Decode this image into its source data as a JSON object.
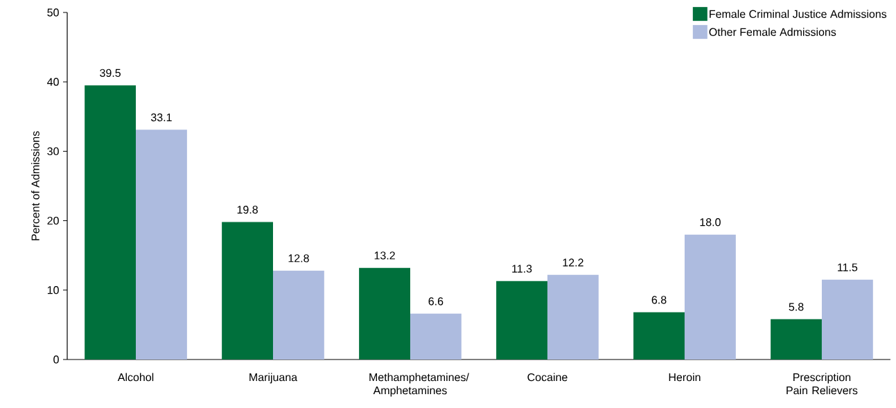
{
  "chart_data": {
    "type": "bar",
    "ylabel": "Percent of Admissions",
    "categories": [
      "Alcohol",
      "Marijuana",
      "Methamphetamines/ Amphetamines",
      "Cocaine",
      "Heroin",
      "Prescription Pain Relievers"
    ],
    "series": [
      {
        "name": "Female Criminal Justice Admissions",
        "color": "#00703c",
        "values": [
          39.5,
          19.8,
          13.2,
          11.3,
          6.8,
          5.8
        ],
        "value_labels": [
          "39.5",
          "19.8",
          "13.2",
          "11.3",
          "6.8",
          "5.8"
        ]
      },
      {
        "name": "Other Female Admissions",
        "color": "#adbbdf",
        "values": [
          33.1,
          12.8,
          6.6,
          12.2,
          18.0,
          11.5
        ],
        "value_labels": [
          "33.1",
          "12.8",
          "6.6",
          "12.2",
          "18.0",
          "11.5"
        ]
      }
    ],
    "ylim": [
      0,
      50
    ],
    "yticks": [
      0,
      10,
      20,
      30,
      40,
      50
    ],
    "grid": false,
    "legend": "top right"
  }
}
